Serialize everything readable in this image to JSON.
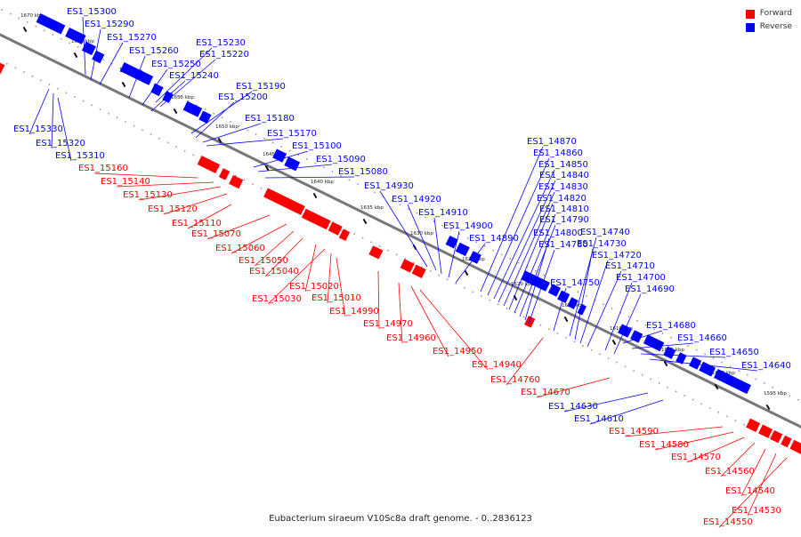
{
  "caption": "Eubacterium siraeum V10Sc8a draft genome. - 0..2836123",
  "legend": [
    {
      "label": "Forward",
      "color": "#ff0000"
    },
    {
      "label": "Reverse",
      "color": "#0000ff"
    }
  ],
  "colors": {
    "forward": "#ff0000",
    "reverse": "#0000ff",
    "backbone": "#777777"
  },
  "ticks": [
    "1670 kbp",
    "1665 kbp",
    "1660 kbp",
    "1655 kbp",
    "1650 kbp",
    "1645 kbp",
    "1640 kbp",
    "1635 kbp",
    "1630 kbp",
    "1625 kbp",
    "1620 kbp",
    "1615 kbp",
    "1610 kbp",
    "1605 kbp",
    "1600 kbp",
    "1595 kbp"
  ],
  "genes": [
    {
      "id": "ES1_15300",
      "strand": "reverse"
    },
    {
      "id": "ES1_15290",
      "strand": "reverse"
    },
    {
      "id": "ES1_15270",
      "strand": "reverse"
    },
    {
      "id": "ES1_15260",
      "strand": "reverse"
    },
    {
      "id": "ES1_15250",
      "strand": "reverse"
    },
    {
      "id": "ES1_15240",
      "strand": "reverse"
    },
    {
      "id": "ES1_15230",
      "strand": "reverse"
    },
    {
      "id": "ES1_15220",
      "strand": "reverse"
    },
    {
      "id": "ES1_15190",
      "strand": "reverse"
    },
    {
      "id": "ES1_15200",
      "strand": "reverse"
    },
    {
      "id": "ES1_15180",
      "strand": "reverse"
    },
    {
      "id": "ES1_15170",
      "strand": "reverse"
    },
    {
      "id": "ES1_15100",
      "strand": "reverse"
    },
    {
      "id": "ES1_15090",
      "strand": "reverse"
    },
    {
      "id": "ES1_15080",
      "strand": "reverse"
    },
    {
      "id": "ES1_15330",
      "strand": "reverse"
    },
    {
      "id": "ES1_15320",
      "strand": "reverse"
    },
    {
      "id": "ES1_15310",
      "strand": "reverse"
    },
    {
      "id": "ES1_15160",
      "strand": "forward"
    },
    {
      "id": "ES1_15140",
      "strand": "forward"
    },
    {
      "id": "ES1_15130",
      "strand": "forward"
    },
    {
      "id": "ES1_15120",
      "strand": "forward"
    },
    {
      "id": "ES1_15110",
      "strand": "forward"
    },
    {
      "id": "ES1_15070",
      "strand": "forward"
    },
    {
      "id": "ES1_15060",
      "strand": "forward"
    },
    {
      "id": "ES1_15050",
      "strand": "forward"
    },
    {
      "id": "ES1_15040",
      "strand": "forward"
    },
    {
      "id": "ES1_15020",
      "strand": "forward"
    },
    {
      "id": "ES1_15030",
      "strand": "forward"
    },
    {
      "id": "ES1_15010",
      "strand": "forward"
    },
    {
      "id": "ES1_14990",
      "strand": "forward"
    },
    {
      "id": "ES1_14970",
      "strand": "forward"
    },
    {
      "id": "ES1_14960",
      "strand": "forward"
    },
    {
      "id": "ES1_14950",
      "strand": "forward"
    },
    {
      "id": "ES1_14940",
      "strand": "forward"
    },
    {
      "id": "ES1_14930",
      "strand": "reverse"
    },
    {
      "id": "ES1_14920",
      "strand": "reverse"
    },
    {
      "id": "ES1_14910",
      "strand": "reverse"
    },
    {
      "id": "ES1_14900",
      "strand": "reverse"
    },
    {
      "id": "ES1_14890",
      "strand": "reverse"
    },
    {
      "id": "ES1_14870",
      "strand": "reverse"
    },
    {
      "id": "ES1_14860",
      "strand": "reverse"
    },
    {
      "id": "ES1_14850",
      "strand": "reverse"
    },
    {
      "id": "ES1_14840",
      "strand": "reverse"
    },
    {
      "id": "ES1_14830",
      "strand": "reverse"
    },
    {
      "id": "ES1_14820",
      "strand": "reverse"
    },
    {
      "id": "ES1_14810",
      "strand": "reverse"
    },
    {
      "id": "ES1_14790",
      "strand": "reverse"
    },
    {
      "id": "ES1_14800",
      "strand": "reverse"
    },
    {
      "id": "ES1_14780",
      "strand": "reverse"
    },
    {
      "id": "ES1_14740",
      "strand": "reverse"
    },
    {
      "id": "ES1_14730",
      "strand": "reverse"
    },
    {
      "id": "ES1_14720",
      "strand": "reverse"
    },
    {
      "id": "ES1_14710",
      "strand": "reverse"
    },
    {
      "id": "ES1_14750",
      "strand": "reverse"
    },
    {
      "id": "ES1_14700",
      "strand": "reverse"
    },
    {
      "id": "ES1_14690",
      "strand": "reverse"
    },
    {
      "id": "ES1_14680",
      "strand": "reverse"
    },
    {
      "id": "ES1_14660",
      "strand": "reverse"
    },
    {
      "id": "ES1_14650",
      "strand": "reverse"
    },
    {
      "id": "ES1_14640",
      "strand": "reverse"
    },
    {
      "id": "ES1_14760",
      "strand": "forward"
    },
    {
      "id": "ES1_14670",
      "strand": "forward"
    },
    {
      "id": "ES1_14630",
      "strand": "reverse"
    },
    {
      "id": "ES1_14610",
      "strand": "reverse"
    },
    {
      "id": "ES1_14590",
      "strand": "forward"
    },
    {
      "id": "ES1_14580",
      "strand": "forward"
    },
    {
      "id": "ES1_14570",
      "strand": "forward"
    },
    {
      "id": "ES1_14560",
      "strand": "forward"
    },
    {
      "id": "ES1_14540",
      "strand": "forward"
    },
    {
      "id": "ES1_14530",
      "strand": "forward"
    },
    {
      "id": "ES1_14550",
      "strand": "forward"
    }
  ]
}
